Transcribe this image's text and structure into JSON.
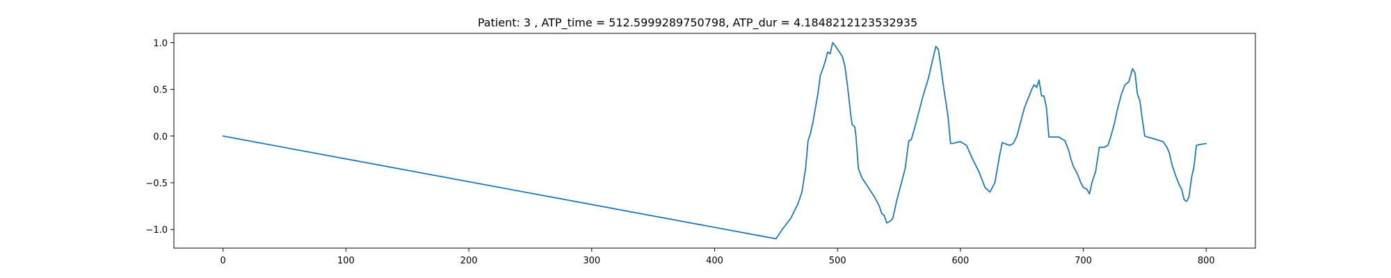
{
  "chart_data": {
    "type": "line",
    "title": "Patient: 3 , ATP_time = 512.5999289750798, ATP_dur = 4.1848212123532935",
    "xlabel": "",
    "ylabel": "",
    "xlim": [
      -40,
      840
    ],
    "ylim": [
      -1.2,
      1.1
    ],
    "xticks": [
      0,
      100,
      200,
      300,
      400,
      500,
      600,
      700,
      800
    ],
    "xtick_labels": [
      "0",
      "100",
      "200",
      "300",
      "400",
      "500",
      "600",
      "700",
      "800"
    ],
    "yticks": [
      1.0,
      0.5,
      0.0,
      -0.5,
      -1.0
    ],
    "ytick_labels": [
      "1.0",
      "0.5",
      "0.0",
      "−0.5",
      "−1.0"
    ],
    "grid": false,
    "series": [
      {
        "color": "#1f77b4",
        "x": [
          0,
          450,
          455,
          462,
          468,
          471,
          474,
          476,
          478,
          480,
          482,
          484,
          486,
          488,
          490,
          492,
          494,
          496,
          498,
          500,
          502,
          504,
          506,
          508,
          510,
          511,
          512,
          514,
          515,
          517,
          520,
          525,
          530,
          534,
          536,
          538,
          540,
          543,
          545,
          548,
          551,
          553,
          555,
          558,
          560,
          563,
          566,
          570,
          574,
          578,
          580,
          582,
          584,
          586,
          588,
          590,
          592,
          594,
          596,
          600,
          605,
          610,
          615,
          620,
          624,
          626,
          628,
          630,
          632,
          634,
          636,
          638,
          640,
          643,
          646,
          648,
          650,
          652,
          655,
          658,
          660,
          662,
          664,
          666,
          668,
          670,
          672,
          675,
          680,
          685,
          688,
          690,
          692,
          695,
          698,
          700,
          703,
          705,
          707,
          710,
          713,
          715,
          717,
          720,
          722,
          725,
          728,
          731,
          734,
          737,
          740,
          742,
          744,
          746,
          748,
          750,
          752,
          755,
          760,
          765,
          768,
          770,
          772,
          775,
          778,
          780,
          782,
          784,
          786,
          788,
          790,
          792,
          795,
          800
        ],
        "y": [
          0.0,
          -1.1,
          -1.0,
          -0.88,
          -0.72,
          -0.6,
          -0.35,
          -0.05,
          0.03,
          0.15,
          0.3,
          0.45,
          0.65,
          0.72,
          0.8,
          0.9,
          0.88,
          1.0,
          0.97,
          0.93,
          0.89,
          0.85,
          0.75,
          0.55,
          0.32,
          0.2,
          0.12,
          0.1,
          0.0,
          -0.35,
          -0.45,
          -0.55,
          -0.65,
          -0.75,
          -0.83,
          -0.85,
          -0.93,
          -0.91,
          -0.88,
          -0.7,
          -0.55,
          -0.45,
          -0.35,
          -0.05,
          -0.04,
          0.1,
          0.25,
          0.45,
          0.62,
          0.85,
          0.96,
          0.93,
          0.75,
          0.55,
          0.38,
          0.2,
          -0.08,
          -0.08,
          -0.07,
          -0.06,
          -0.1,
          -0.25,
          -0.38,
          -0.55,
          -0.6,
          -0.55,
          -0.5,
          -0.35,
          -0.2,
          -0.07,
          -0.08,
          -0.09,
          -0.1,
          -0.08,
          0.0,
          0.1,
          0.2,
          0.3,
          0.4,
          0.5,
          0.55,
          0.52,
          0.6,
          0.43,
          0.43,
          0.3,
          -0.01,
          -0.01,
          -0.01,
          -0.05,
          -0.15,
          -0.25,
          -0.33,
          -0.4,
          -0.5,
          -0.55,
          -0.57,
          -0.62,
          -0.5,
          -0.38,
          -0.12,
          -0.12,
          -0.12,
          -0.1,
          -0.02,
          0.12,
          0.3,
          0.45,
          0.55,
          0.58,
          0.72,
          0.68,
          0.45,
          0.38,
          0.18,
          0.0,
          -0.01,
          -0.02,
          -0.04,
          -0.06,
          -0.12,
          -0.18,
          -0.3,
          -0.42,
          -0.52,
          -0.57,
          -0.68,
          -0.7,
          -0.65,
          -0.45,
          -0.33,
          -0.1,
          -0.09,
          -0.08
        ]
      }
    ]
  }
}
